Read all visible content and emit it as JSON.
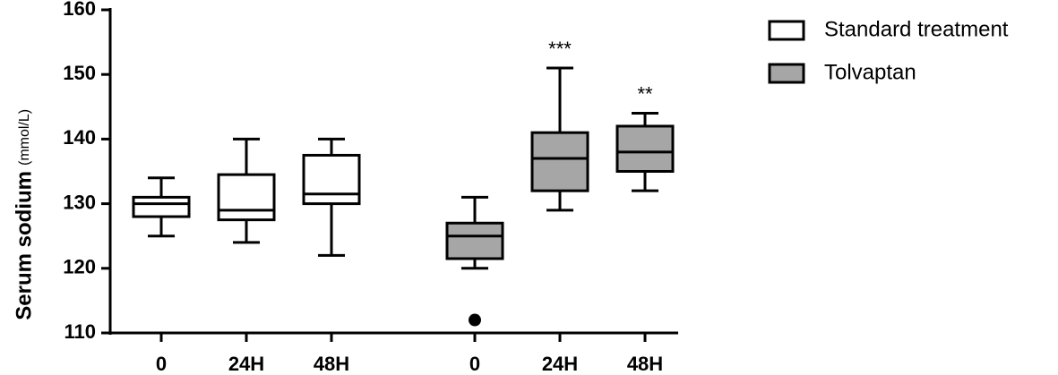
{
  "chart_data": {
    "type": "box",
    "y_label": "Serum sodium",
    "y_unit": "(mmol/L)",
    "ylim": [
      110,
      160
    ],
    "yticks": [
      110,
      120,
      130,
      140,
      150,
      160
    ],
    "series": [
      {
        "name": "Standard treatment",
        "color": "#ffffff",
        "categories": [
          "0",
          "24H",
          "48H"
        ],
        "min": [
          125,
          124,
          122
        ],
        "q1": [
          128,
          127.5,
          130
        ],
        "median": [
          130,
          129,
          131.5
        ],
        "q3": [
          131,
          134.5,
          137.5
        ],
        "max": [
          134,
          140,
          140
        ],
        "outliers": [
          [],
          [],
          []
        ],
        "annotations": [
          null,
          null,
          null
        ]
      },
      {
        "name": "Tolvaptan",
        "color": "#a6a6a6",
        "categories": [
          "0",
          "24H",
          "48H"
        ],
        "min": [
          120,
          129,
          132
        ],
        "q1": [
          121.5,
          132,
          135
        ],
        "median": [
          125,
          137,
          138
        ],
        "q3": [
          127,
          141,
          142
        ],
        "max": [
          131,
          151,
          144
        ],
        "outliers": [
          [
            112
          ],
          [],
          []
        ],
        "annotations": [
          null,
          "***",
          "**"
        ]
      }
    ]
  }
}
